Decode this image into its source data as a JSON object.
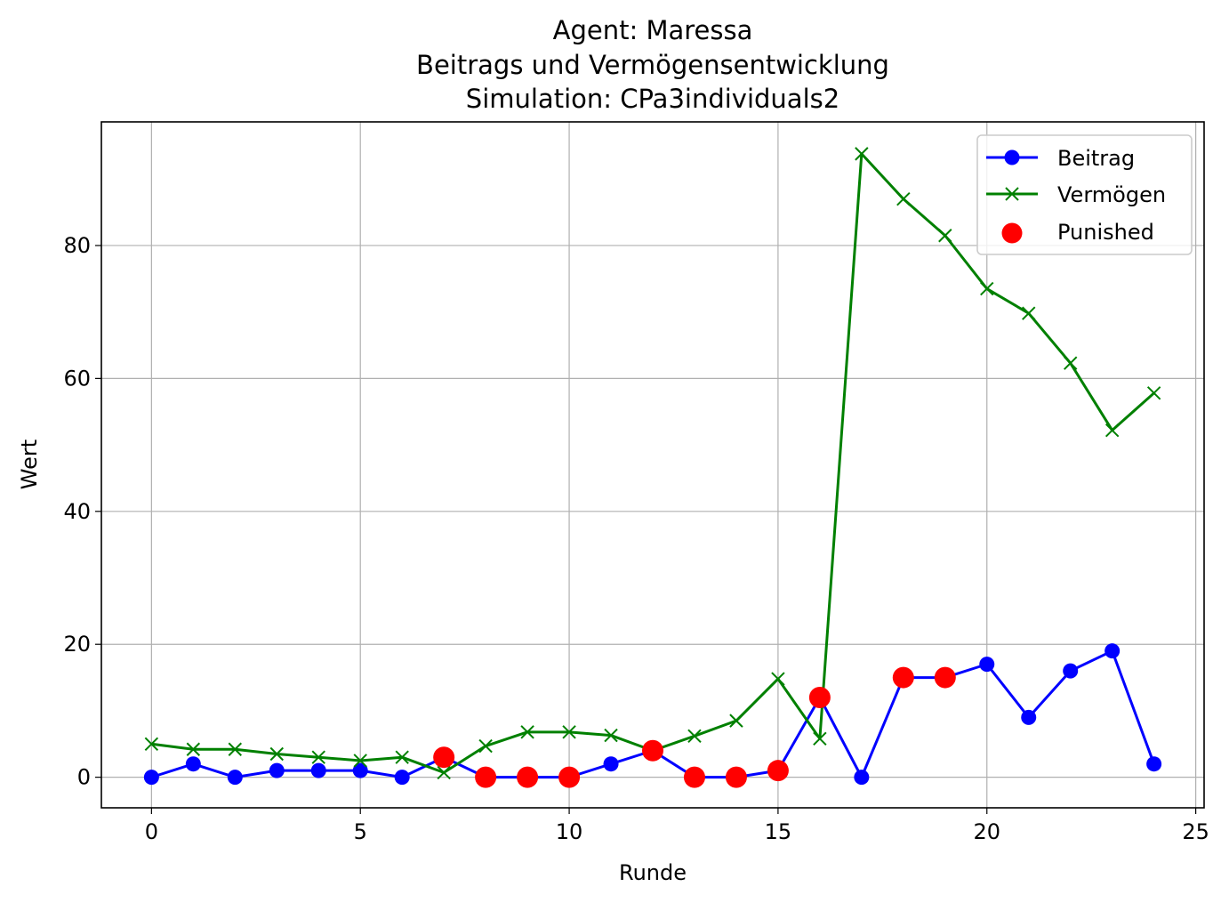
{
  "chart_data": {
    "type": "line",
    "title_lines": [
      "Agent: Maressa",
      "Beitrags und Vermögensentwicklung",
      "Simulation: CPa3individuals2"
    ],
    "xlabel": "Runde",
    "ylabel": "Wert",
    "xlim": [
      -1.2,
      25.2
    ],
    "ylim": [
      -4.6,
      98.6
    ],
    "xticks": [
      0,
      5,
      10,
      15,
      20,
      25
    ],
    "yticks": [
      0,
      20,
      40,
      60,
      80
    ],
    "grid": true,
    "legend_position": "top-right",
    "x": [
      0,
      1,
      2,
      3,
      4,
      5,
      6,
      7,
      8,
      9,
      10,
      11,
      12,
      13,
      14,
      15,
      16,
      17,
      18,
      19,
      20,
      21,
      22,
      23,
      24
    ],
    "series": [
      {
        "name": "Beitrag",
        "color": "#0000ff",
        "marker": "circle",
        "values": [
          0,
          2,
          0,
          1,
          1,
          1,
          0,
          3,
          0,
          0,
          0,
          2,
          4,
          0,
          0,
          1,
          12,
          0,
          15,
          15,
          17,
          9,
          16,
          19,
          2
        ]
      },
      {
        "name": "Vermögen",
        "color": "#008000",
        "marker": "x",
        "values": [
          5,
          4.2,
          4.2,
          3.5,
          3,
          2.5,
          3,
          0.7,
          4.7,
          6.8,
          6.8,
          6.3,
          4,
          6.2,
          8.5,
          14.8,
          5.8,
          93.8,
          87,
          81.5,
          73.5,
          69.8,
          62.3,
          52.2,
          57.8
        ]
      }
    ],
    "scatter": {
      "name": "Punished",
      "color": "#ff0000",
      "x": [
        7,
        8,
        9,
        10,
        12,
        13,
        14,
        15,
        16,
        18,
        19
      ],
      "y": [
        3,
        0,
        0,
        0,
        4,
        0,
        0,
        1,
        12,
        15,
        15
      ]
    }
  }
}
